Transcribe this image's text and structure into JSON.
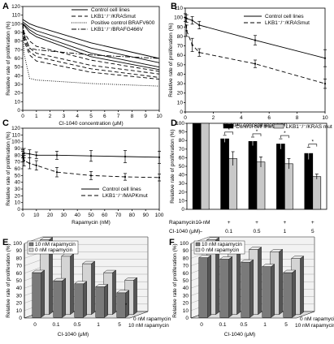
{
  "chart_data": [
    {
      "panel": "A",
      "type": "line",
      "xlabel": "CI-1040 concentration (μM)",
      "ylabel": "Relative rate of proliferation (%)",
      "xlim": [
        0,
        10
      ],
      "ylim": [
        0,
        120
      ],
      "xticks": [
        0,
        1,
        2,
        3,
        4,
        5,
        6,
        7,
        8,
        9,
        10
      ],
      "yticks": [
        0,
        10,
        20,
        30,
        40,
        50,
        60,
        70,
        80,
        90,
        100,
        110,
        120
      ],
      "legend": [
        "Control cell lines",
        "LKB1⁻/⁻/KRASmut",
        "Positive control BRAFV600",
        "LKB1⁻/⁻/BRAFG466V"
      ],
      "x": [
        0,
        0.1,
        0.5,
        1,
        5,
        10
      ],
      "series": [
        {
          "name": "Control cell lines",
          "style": "solid",
          "values": [
            105,
            104,
            100,
            97,
            78,
            60
          ]
        },
        {
          "name": "Control cell lines",
          "style": "solid",
          "values": [
            102,
            101,
            96,
            92,
            72,
            55
          ]
        },
        {
          "name": "Control cell lines",
          "style": "solid",
          "values": [
            100,
            99,
            93,
            88,
            66,
            50
          ]
        },
        {
          "name": "Control cell lines",
          "style": "solid",
          "values": [
            100,
            98,
            90,
            85,
            62,
            47
          ]
        },
        {
          "name": "LKB1⁻/⁻/KRASmut",
          "style": "dash",
          "values": [
            100,
            90,
            80,
            74,
            58,
            45
          ]
        },
        {
          "name": "LKB1⁻/⁻/KRASmut",
          "style": "dash",
          "values": [
            100,
            86,
            72,
            66,
            52,
            42
          ]
        },
        {
          "name": "LKB1⁻/⁻/KRASmut",
          "style": "dash",
          "values": [
            100,
            83,
            68,
            62,
            48,
            38
          ]
        },
        {
          "name": "LKB1⁻/⁻/KRASmut",
          "style": "dash",
          "values": [
            100,
            80,
            64,
            57,
            44,
            36
          ]
        },
        {
          "name": "Positive control BRAFV600",
          "style": "dot",
          "values": [
            100,
            65,
            37,
            35,
            31,
            28
          ]
        },
        {
          "name": "LKB1⁻/⁻/BRAFG466V",
          "style": "dashdot",
          "values": [
            100,
            88,
            72,
            70,
            64,
            60
          ]
        }
      ]
    },
    {
      "panel": "B",
      "type": "line",
      "xlabel": "CI-1040 concentration (μM)",
      "ylabel": "Relative rate of proliferation (%)",
      "xlim": [
        0,
        10
      ],
      "ylim": [
        0,
        110
      ],
      "xticks": [
        0,
        2,
        4,
        6,
        8,
        10
      ],
      "yticks": [
        0,
        10,
        20,
        30,
        40,
        50,
        60,
        70,
        80,
        90,
        100,
        110
      ],
      "legend": [
        "Control cell lines",
        "LKB1⁻/⁻/KRASmut"
      ],
      "x": [
        0,
        0.1,
        0.5,
        1,
        5,
        10
      ],
      "series": [
        {
          "name": "Control cell lines",
          "style": "solid",
          "values": [
            100,
            99,
            97,
            92,
            76,
            57
          ],
          "err": [
            4,
            4,
            4,
            4,
            5,
            9
          ]
        },
        {
          "name": "LKB1⁻/⁻/KRASmut",
          "style": "dash",
          "values": [
            100,
            86,
            71,
            63,
            51,
            30
          ],
          "err": [
            4,
            6,
            7,
            4,
            4,
            5
          ]
        }
      ]
    },
    {
      "panel": "C",
      "type": "line",
      "xlabel": "Rapamycin (nM)",
      "ylabel": "Relative rate of proliferation (%)",
      "xlim": [
        0,
        100
      ],
      "ylim": [
        0,
        120
      ],
      "xticks": [
        0,
        10,
        20,
        30,
        40,
        50,
        60,
        70,
        80,
        90,
        100
      ],
      "yticks": [
        0,
        10,
        20,
        30,
        40,
        50,
        60,
        70,
        80,
        90,
        100,
        110,
        120
      ],
      "legend": [
        "Control cell lines",
        "LKB1⁻/⁻/MAPKmut"
      ],
      "x": [
        0,
        1,
        5,
        10,
        25,
        50,
        75,
        100
      ],
      "series": [
        {
          "name": "Control cell lines",
          "style": "solid",
          "values": [
            82,
            83,
            82,
            80,
            80,
            79,
            78,
            77
          ],
          "err": [
            6,
            7,
            6,
            5,
            6,
            8,
            9,
            9
          ]
        },
        {
          "name": "LKB1⁻/⁻/MAPKmut",
          "style": "dash",
          "values": [
            78,
            72,
            68,
            65,
            55,
            50,
            48,
            47
          ],
          "err": [
            8,
            8,
            8,
            7,
            7,
            6,
            5,
            5
          ]
        }
      ]
    },
    {
      "panel": "D",
      "type": "bar",
      "ylabel": "Relative rate of proliferation (%)",
      "ylim": [
        0,
        100
      ],
      "yticks": [
        0,
        10,
        20,
        30,
        40,
        50,
        60,
        70,
        80,
        90,
        100
      ],
      "legend": [
        "Control cell lines",
        "LKB1⁻/⁻/KRAS mut"
      ],
      "row_labels": [
        "Rapamycin10 nM",
        "CI-1040 (μM)"
      ],
      "groups": [
        {
          "rapa": "–",
          "ci": "–",
          "star": ""
        },
        {
          "rapa": "+",
          "ci": "0.1",
          "star": "*"
        },
        {
          "rapa": "+",
          "ci": "0.5",
          "star": "*"
        },
        {
          "rapa": "+",
          "ci": "1",
          "star": "*"
        },
        {
          "rapa": "+",
          "ci": "5",
          "star": "*"
        }
      ],
      "series": [
        {
          "name": "Control cell lines",
          "color": "#000000",
          "values": [
            100,
            82,
            79,
            76,
            65
          ],
          "err": [
            0,
            4,
            5,
            6,
            7
          ]
        },
        {
          "name": "LKB1⁻/⁻/KRAS mut",
          "color": "#c8c8c8",
          "values": [
            100,
            59,
            55,
            53,
            38
          ],
          "err": [
            0,
            8,
            6,
            6,
            3
          ]
        }
      ]
    },
    {
      "panel": "E",
      "type": "bar",
      "ylabel": "Relative rate of proliferation (%)",
      "xlabel": "CI-1040 (μM)",
      "ylim": [
        0,
        100
      ],
      "yticks": [
        0,
        10,
        20,
        30,
        40,
        50,
        60,
        70,
        80,
        90,
        100
      ],
      "categories": [
        "0",
        "0.1",
        "0.5",
        "1",
        "5"
      ],
      "legend": [
        "10 nM rapamycin",
        "0 nM rapamycin"
      ],
      "depth_labels": [
        "0 nM rapamycin",
        "10 nM rapamycin"
      ],
      "series": [
        {
          "name": "0 nM rapamycin",
          "color": "#d4d4d4",
          "values": [
            100,
            78,
            68,
            56,
            46
          ]
        },
        {
          "name": "10 nM rapamycin",
          "color": "#7a7a7a",
          "values": [
            60,
            49,
            45,
            41,
            33
          ]
        }
      ],
      "annotation": "*"
    },
    {
      "panel": "F",
      "type": "bar",
      "ylabel": "Relative rate of proliferation (%)",
      "xlabel": "CI-1040 (μM)",
      "ylim": [
        0,
        100
      ],
      "yticks": [
        0,
        10,
        20,
        30,
        40,
        50,
        60,
        70,
        80,
        90,
        100
      ],
      "categories": [
        "0",
        "0.1",
        "0.5",
        "1",
        "5"
      ],
      "legend": [
        "10 nM rapamycin",
        "0 nM rapamycin"
      ],
      "depth_labels": [
        "0 nM rapamycin",
        "10 nM rapamycin"
      ],
      "series": [
        {
          "name": "0 nM rapamycin",
          "color": "#d4d4d4",
          "values": [
            100,
            95,
            87,
            84,
            75
          ]
        },
        {
          "name": "10 nM rapamycin",
          "color": "#7a7a7a",
          "values": [
            80,
            78,
            74,
            68,
            60
          ]
        }
      ]
    }
  ]
}
